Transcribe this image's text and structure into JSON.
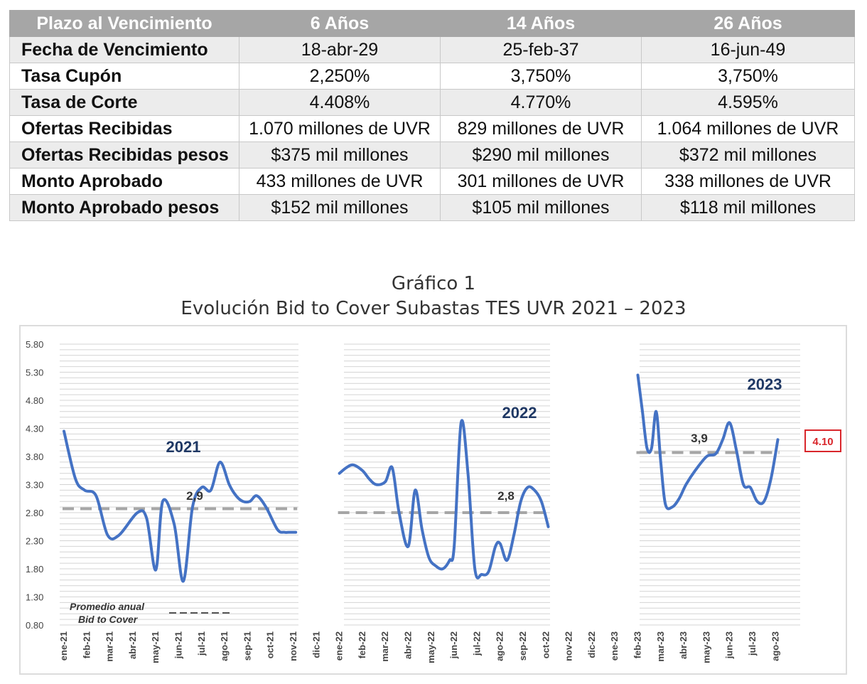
{
  "table": {
    "header": [
      "Plazo al Vencimiento",
      "6 Años",
      "14 Años",
      "26 Años"
    ],
    "rows": [
      [
        "Fecha de Vencimiento",
        "18-abr-29",
        "25-feb-37",
        "16-jun-49"
      ],
      [
        "Tasa Cupón",
        "2,250%",
        "3,750%",
        "3,750%"
      ],
      [
        "Tasa de Corte",
        "4.408%",
        "4.770%",
        "4.595%"
      ],
      [
        "Ofertas Recibidas",
        "1.070 millones de UVR",
        "829 millones de UVR",
        "1.064 millones de UVR"
      ],
      [
        "Ofertas Recibidas pesos",
        "$375 mil millones",
        "$290 mil millones",
        "$372 mil millones"
      ],
      [
        "Monto Aprobado",
        "433 millones de UVR",
        "301 millones de UVR",
        "338 millones de UVR"
      ],
      [
        "Monto Aprobado pesos",
        "$152 mil millones",
        "$105 mil millones",
        "$118 mil millones"
      ]
    ]
  },
  "chart_data": {
    "type": "line",
    "title": "Gráfico 1",
    "subtitle": "Evolución Bid to Cover Subastas TES UVR 2021 – 2023",
    "ylim": [
      0.8,
      5.8
    ],
    "yticks": [
      "5.80",
      "5.30",
      "4.80",
      "4.30",
      "3.80",
      "3.30",
      "2.80",
      "2.30",
      "1.80",
      "1.30",
      "0.80"
    ],
    "grid": true,
    "x_labels": [
      "ene-21",
      "feb-21",
      "mar-21",
      "abr-21",
      "may-21",
      "jun-21",
      "jul-21",
      "ago-21",
      "sep-21",
      "oct-21",
      "nov-21",
      "dic-21",
      "ene-22",
      "feb-22",
      "mar-22",
      "abr-22",
      "may-22",
      "jun-22",
      "jul-22",
      "ago-22",
      "sep-22",
      "oct-22",
      "nov-22",
      "dic-22",
      "ene-23",
      "feb-23",
      "mar-23",
      "abr-23",
      "may-23",
      "jun-23",
      "jul-23",
      "ago-23"
    ],
    "series": [
      {
        "name": "2021",
        "color": "#4472c4",
        "x": [
          0,
          0.5,
          0.9,
          1.4,
          1.9,
          2.4,
          3.2,
          3.6,
          4.0,
          4.3,
          4.8,
          5.2,
          5.6,
          6.0,
          6.4,
          6.8,
          7.2,
          7.5,
          7.8,
          8.1,
          8.4,
          8.8,
          9.3,
          9.6,
          9.8,
          10.1
        ],
        "values": [
          4.25,
          3.4,
          3.2,
          3.1,
          2.4,
          2.4,
          2.8,
          2.7,
          1.78,
          3.0,
          2.6,
          1.58,
          2.9,
          3.25,
          3.2,
          3.7,
          3.3,
          3.1,
          3.0,
          3.0,
          3.1,
          2.9,
          2.5,
          2.45,
          2.45,
          2.45
        ]
      },
      {
        "name": "2022",
        "color": "#4472c4",
        "x": [
          12.0,
          12.3,
          12.6,
          13.0,
          13.3,
          13.6,
          14.0,
          14.3,
          14.6,
          15.0,
          15.3,
          15.6,
          15.9,
          16.2,
          16.5,
          16.8,
          17.0,
          17.3,
          17.6,
          17.9,
          18.2,
          18.5,
          18.8,
          19.0,
          19.3,
          19.6,
          19.9,
          20.2,
          20.5,
          20.8,
          21.1
        ],
        "values": [
          3.5,
          3.6,
          3.65,
          3.55,
          3.4,
          3.3,
          3.35,
          3.6,
          2.8,
          2.2,
          3.2,
          2.5,
          2.0,
          1.85,
          1.8,
          1.95,
          2.2,
          4.4,
          3.5,
          1.8,
          1.7,
          1.75,
          2.2,
          2.25,
          1.95,
          2.4,
          3.0,
          3.25,
          3.2,
          3.0,
          2.55
        ]
      },
      {
        "name": "2023",
        "color": "#4472c4",
        "x": [
          25.0,
          25.2,
          25.4,
          25.6,
          25.8,
          26.0,
          26.2,
          26.5,
          26.8,
          27.1,
          27.5,
          28.0,
          28.4,
          28.7,
          29.0,
          29.3,
          29.6,
          29.9,
          30.2,
          30.5,
          30.8,
          31.1
        ],
        "values": [
          5.25,
          4.6,
          3.95,
          3.95,
          4.6,
          3.7,
          2.95,
          2.9,
          3.05,
          3.3,
          3.55,
          3.8,
          3.85,
          4.1,
          4.4,
          3.9,
          3.3,
          3.25,
          3.0,
          3.0,
          3.4,
          4.1
        ]
      }
    ],
    "averages": [
      {
        "year": "2021",
        "value": 2.87,
        "label": "2,9",
        "x_range": [
          0,
          10.1
        ]
      },
      {
        "year": "2022",
        "value": 2.8,
        "label": "2,8",
        "x_range": [
          12.0,
          21.1
        ]
      },
      {
        "year": "2023",
        "value": 3.87,
        "label": "3,9",
        "x_range": [
          25.0,
          31.1
        ]
      }
    ],
    "annotations": {
      "last_value_label": "4.10",
      "legend_line1": "Promedio anual",
      "legend_line2": "Bid to Cover"
    },
    "colors": {
      "line": "#4472c4",
      "average": "#a6a6a6",
      "year_label": "#1f3864",
      "highlight_box": "#d9262b",
      "grid": "#d0d0d0"
    }
  }
}
